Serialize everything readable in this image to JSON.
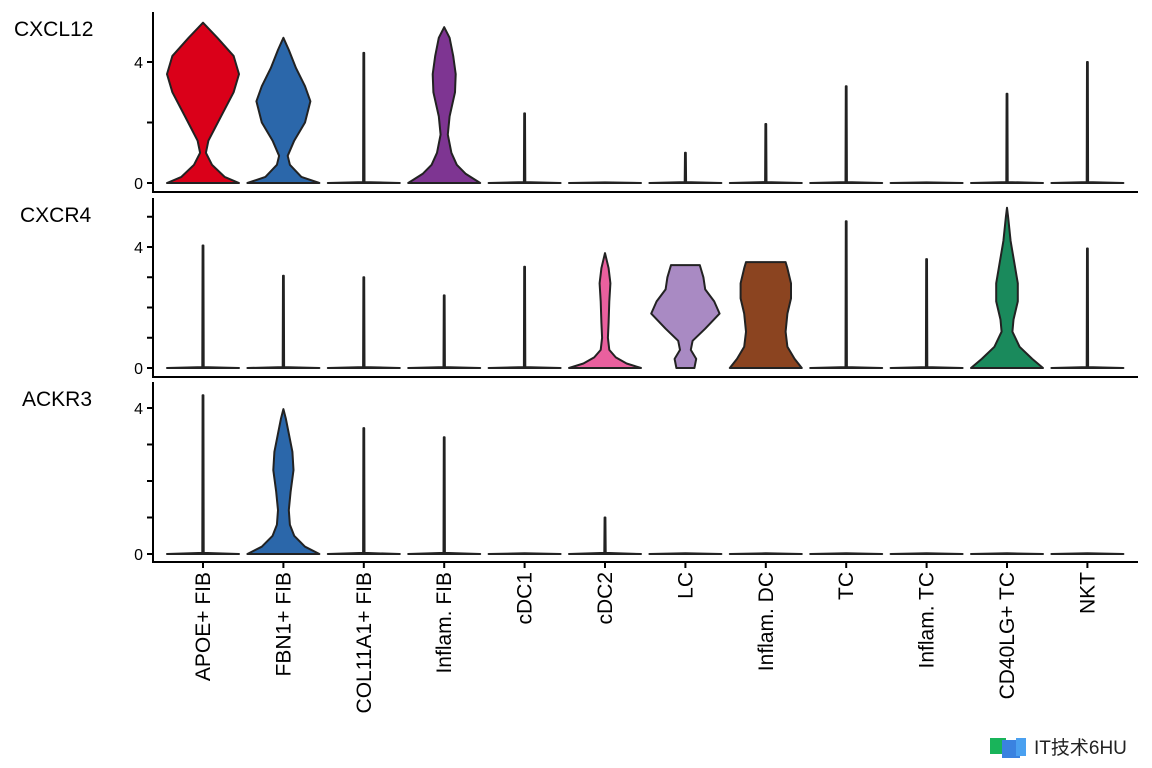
{
  "chart_data": {
    "type": "violin",
    "title": "",
    "xlabel": "",
    "categories": [
      "APOE+ FIB",
      "FBN1+ FIB",
      "COL11A1+ FIB",
      "Inflam. FIB",
      "cDC1",
      "cDC2",
      "LC",
      "Inflam. DC",
      "TC",
      "Inflam. TC",
      "CD40LG+ TC",
      "NKT"
    ],
    "colors": [
      "#DA0019",
      "#2B67AA",
      "#2B67AA",
      "#7E3592",
      "#333333",
      "#E9609E",
      "#A98AC3",
      "#8B4420",
      "#333333",
      "#333333",
      "#1A8A5C",
      "#333333"
    ],
    "panels": [
      {
        "gene": "CXCL12",
        "yticks": [
          0,
          2,
          4
        ],
        "ytick_labels": [
          "0",
          "4"
        ],
        "ylim": [
          0,
          5.6
        ],
        "violins": [
          [
            [
              0,
              1.0
            ],
            [
              0.2,
              0.6
            ],
            [
              0.6,
              0.25
            ],
            [
              1.0,
              0.08
            ],
            [
              1.4,
              0.15
            ],
            [
              2.2,
              0.5
            ],
            [
              3.0,
              0.85
            ],
            [
              3.6,
              1.0
            ],
            [
              4.2,
              0.85
            ],
            [
              4.8,
              0.4
            ],
            [
              5.3,
              0
            ]
          ],
          [
            [
              0,
              1.0
            ],
            [
              0.2,
              0.5
            ],
            [
              0.6,
              0.18
            ],
            [
              0.9,
              0.12
            ],
            [
              1.4,
              0.3
            ],
            [
              2.0,
              0.6
            ],
            [
              2.7,
              0.75
            ],
            [
              3.2,
              0.6
            ],
            [
              3.8,
              0.35
            ],
            [
              4.4,
              0.15
            ],
            [
              4.8,
              0
            ]
          ],
          [
            [
              0,
              1.0
            ],
            [
              0.03,
              0.02
            ],
            [
              4.3,
              0.01
            ]
          ],
          [
            [
              0,
              1.0
            ],
            [
              0.3,
              0.6
            ],
            [
              0.6,
              0.35
            ],
            [
              1.0,
              0.2
            ],
            [
              1.6,
              0.1
            ],
            [
              2.2,
              0.15
            ],
            [
              3.0,
              0.3
            ],
            [
              3.6,
              0.32
            ],
            [
              4.2,
              0.25
            ],
            [
              4.8,
              0.15
            ],
            [
              5.15,
              0
            ]
          ],
          [
            [
              0,
              1.0
            ],
            [
              0.03,
              0.02
            ],
            [
              2.3,
              0.01
            ]
          ],
          [
            [
              0,
              1.0
            ],
            [
              0.02,
              0
            ]
          ],
          [
            [
              0,
              1.0
            ],
            [
              0.03,
              0.02
            ],
            [
              1.0,
              0.01
            ]
          ],
          [
            [
              0,
              1.0
            ],
            [
              0.03,
              0.02
            ],
            [
              1.95,
              0.01
            ]
          ],
          [
            [
              0,
              1.0
            ],
            [
              0.03,
              0.02
            ],
            [
              3.2,
              0.01
            ]
          ],
          [
            [
              0,
              1.0
            ],
            [
              0.02,
              0
            ]
          ],
          [
            [
              0,
              1.0
            ],
            [
              0.03,
              0.02
            ],
            [
              2.95,
              0.01
            ]
          ],
          [
            [
              0,
              1.0
            ],
            [
              0.03,
              0.02
            ],
            [
              4.0,
              0.01
            ]
          ]
        ]
      },
      {
        "gene": "CXCR4",
        "yticks": [
          0,
          1,
          2,
          3,
          4,
          5
        ],
        "ytick_labels": [
          "0",
          "4"
        ],
        "ylim": [
          0,
          5.3
        ],
        "violins": [
          [
            [
              0,
              1.0
            ],
            [
              0.03,
              0.02
            ],
            [
              4.05,
              0.01
            ]
          ],
          [
            [
              0,
              1.0
            ],
            [
              0.03,
              0.02
            ],
            [
              3.05,
              0.01
            ]
          ],
          [
            [
              0,
              1.0
            ],
            [
              0.03,
              0.02
            ],
            [
              3.0,
              0.01
            ]
          ],
          [
            [
              0,
              1.0
            ],
            [
              0.03,
              0.02
            ],
            [
              2.4,
              0.01
            ]
          ],
          [
            [
              0,
              1.0
            ],
            [
              0.03,
              0.02
            ],
            [
              3.35,
              0.01
            ]
          ],
          [
            [
              0,
              1.0
            ],
            [
              0.15,
              0.6
            ],
            [
              0.35,
              0.3
            ],
            [
              0.6,
              0.12
            ],
            [
              1.0,
              0.08
            ],
            [
              1.5,
              0.1
            ],
            [
              2.2,
              0.12
            ],
            [
              2.8,
              0.15
            ],
            [
              3.3,
              0.1
            ],
            [
              3.8,
              0
            ]
          ],
          [
            [
              0,
              0.25
            ],
            [
              0.3,
              0.3
            ],
            [
              0.6,
              0.15
            ],
            [
              0.9,
              0.2
            ],
            [
              1.3,
              0.55
            ],
            [
              1.8,
              0.95
            ],
            [
              2.2,
              0.8
            ],
            [
              2.6,
              0.55
            ],
            [
              3.0,
              0.5
            ],
            [
              3.4,
              0.4
            ]
          ],
          [
            [
              0,
              1.0
            ],
            [
              0.3,
              0.8
            ],
            [
              0.7,
              0.6
            ],
            [
              1.2,
              0.55
            ],
            [
              1.8,
              0.6
            ],
            [
              2.3,
              0.7
            ],
            [
              2.8,
              0.7
            ],
            [
              3.3,
              0.6
            ],
            [
              3.5,
              0.55
            ]
          ],
          [
            [
              0,
              1.0
            ],
            [
              0.03,
              0.02
            ],
            [
              4.85,
              0.01
            ]
          ],
          [
            [
              0,
              1.0
            ],
            [
              0.03,
              0.02
            ],
            [
              3.6,
              0.01
            ]
          ],
          [
            [
              0,
              1.0
            ],
            [
              0.3,
              0.7
            ],
            [
              0.7,
              0.35
            ],
            [
              1.2,
              0.15
            ],
            [
              1.6,
              0.18
            ],
            [
              2.2,
              0.3
            ],
            [
              2.8,
              0.3
            ],
            [
              3.5,
              0.2
            ],
            [
              4.2,
              0.1
            ],
            [
              5.0,
              0.03
            ],
            [
              5.3,
              0
            ]
          ],
          [
            [
              0,
              1.0
            ],
            [
              0.03,
              0.02
            ],
            [
              3.95,
              0.01
            ]
          ]
        ]
      },
      {
        "gene": "ACKR3",
        "yticks": [
          0,
          1,
          2,
          3,
          4
        ],
        "ytick_labels": [
          "0",
          "4"
        ],
        "ylim": [
          0,
          4.5
        ],
        "violins": [
          [
            [
              0,
              1.0
            ],
            [
              0.03,
              0.02
            ],
            [
              4.35,
              0.01
            ]
          ],
          [
            [
              0,
              1.0
            ],
            [
              0.2,
              0.6
            ],
            [
              0.5,
              0.3
            ],
            [
              0.8,
              0.18
            ],
            [
              1.2,
              0.15
            ],
            [
              1.7,
              0.2
            ],
            [
              2.3,
              0.28
            ],
            [
              2.8,
              0.25
            ],
            [
              3.3,
              0.15
            ],
            [
              3.7,
              0.07
            ],
            [
              3.97,
              0
            ]
          ],
          [
            [
              0,
              1.0
            ],
            [
              0.03,
              0.02
            ],
            [
              3.45,
              0.01
            ]
          ],
          [
            [
              0,
              1.0
            ],
            [
              0.03,
              0.02
            ],
            [
              3.2,
              0.01
            ]
          ],
          [
            [
              0,
              1.0
            ],
            [
              0.02,
              0
            ]
          ],
          [
            [
              0,
              1.0
            ],
            [
              0.03,
              0.02
            ],
            [
              1.0,
              0.01
            ]
          ],
          [
            [
              0,
              1.0
            ],
            [
              0.02,
              0
            ]
          ],
          [
            [
              0,
              1.0
            ],
            [
              0.02,
              0
            ]
          ],
          [
            [
              0,
              1.0
            ],
            [
              0.02,
              0
            ]
          ],
          [
            [
              0,
              1.0
            ],
            [
              0.02,
              0
            ]
          ],
          [
            [
              0,
              1.0
            ],
            [
              0.02,
              0
            ]
          ],
          [
            [
              0,
              1.0
            ],
            [
              0.02,
              0
            ]
          ]
        ]
      }
    ]
  },
  "watermark": "IT技术6HU"
}
